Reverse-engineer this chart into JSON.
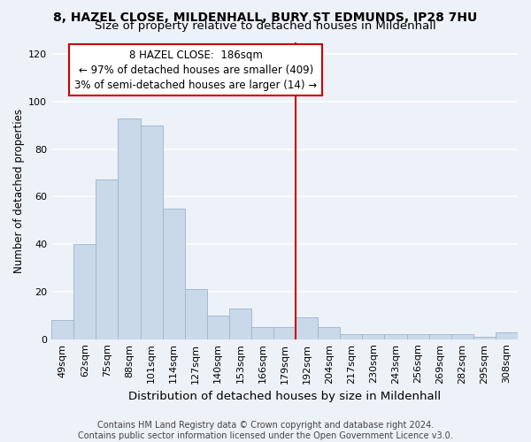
{
  "title": "8, HAZEL CLOSE, MILDENHALL, BURY ST EDMUNDS, IP28 7HU",
  "subtitle": "Size of property relative to detached houses in Mildenhall",
  "xlabel": "Distribution of detached houses by size in Mildenhall",
  "ylabel": "Number of detached properties",
  "footnote": "Contains HM Land Registry data © Crown copyright and database right 2024.\nContains public sector information licensed under the Open Government Licence v3.0.",
  "categories": [
    "49sqm",
    "62sqm",
    "75sqm",
    "88sqm",
    "101sqm",
    "114sqm",
    "127sqm",
    "140sqm",
    "153sqm",
    "166sqm",
    "179sqm",
    "192sqm",
    "204sqm",
    "217sqm",
    "230sqm",
    "243sqm",
    "256sqm",
    "269sqm",
    "282sqm",
    "295sqm",
    "308sqm"
  ],
  "values": [
    8,
    40,
    67,
    93,
    90,
    55,
    21,
    10,
    13,
    5,
    5,
    9,
    5,
    2,
    2,
    2,
    2,
    2,
    2,
    1,
    3
  ],
  "bar_color": "#c9d9ea",
  "bar_edge_color": "#9ab5cc",
  "annotation_label": "8 HAZEL CLOSE:  186sqm",
  "annotation_line1": "← 97% of detached houses are smaller (409)",
  "annotation_line2": "3% of semi-detached houses are larger (14) →",
  "annotation_box_color": "#ffffff",
  "annotation_box_edge": "#cc0000",
  "vline_color": "#cc0000",
  "ylim": [
    0,
    125
  ],
  "yticks": [
    0,
    20,
    40,
    60,
    80,
    100,
    120
  ],
  "background_color": "#edf1f8",
  "grid_color": "#ffffff",
  "title_fontsize": 10,
  "subtitle_fontsize": 9.5,
  "xlabel_fontsize": 9.5,
  "ylabel_fontsize": 8.5,
  "tick_fontsize": 8,
  "footnote_fontsize": 7,
  "ann_fontsize": 8.5
}
